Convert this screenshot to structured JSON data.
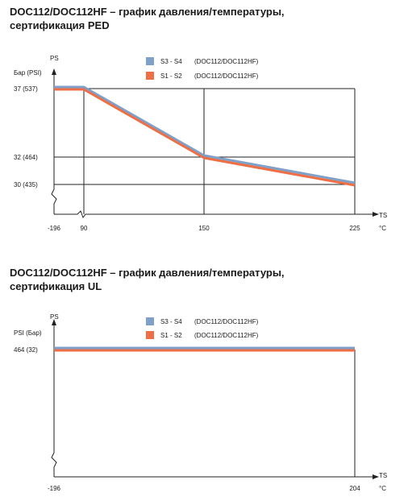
{
  "chart_data": [
    {
      "type": "line",
      "title_line1": "DOC112/DOC112HF – график давления/температуры,",
      "title_line2": "сертификация PED",
      "y_axis_name": "PS",
      "y_unit": "Бар (PSI)",
      "x_axis_name": "TS",
      "x_unit": "°C",
      "x_ticks": [
        {
          "value": -196,
          "label": "-196"
        },
        {
          "value": 90,
          "label": "90"
        },
        {
          "value": 150,
          "label": "150"
        },
        {
          "value": 225,
          "label": "225"
        }
      ],
      "y_ticks": [
        {
          "value": 37,
          "label": "37  (537)"
        },
        {
          "value": 32,
          "label": "32  (464)"
        },
        {
          "value": 30,
          "label": "30  (435)"
        }
      ],
      "grid": true,
      "legend_position": "top-center",
      "series": [
        {
          "name": "S3 - S4",
          "models": "(DOC112/DOC112HF)",
          "color": "#7fa0c8",
          "points": [
            [
              -196,
              37
            ],
            [
              90,
              37
            ],
            [
              150,
              32
            ],
            [
              225,
              30
            ]
          ]
        },
        {
          "name": "S1 - S2",
          "models": "(DOC112/DOC112HF)",
          "color": "#ee6e45",
          "points": [
            [
              -196,
              37
            ],
            [
              90,
              37
            ],
            [
              150,
              32
            ],
            [
              225,
              30
            ]
          ]
        }
      ]
    },
    {
      "type": "line",
      "title_line1": "DOC112/DOC112HF – график давления/температуры,",
      "title_line2": "сертификация UL",
      "y_axis_name": "PS",
      "y_unit": "PSI (Бар)",
      "x_axis_name": "TS",
      "x_unit": "°C",
      "x_ticks": [
        {
          "value": -196,
          "label": "-196"
        },
        {
          "value": 204,
          "label": "204"
        }
      ],
      "y_ticks": [
        {
          "value": 464,
          "label": "464  (32)"
        }
      ],
      "grid": false,
      "legend_position": "top-center",
      "series": [
        {
          "name": "S3 - S4",
          "models": "(DOC112/DOC112HF)",
          "color": "#7fa0c8",
          "points": [
            [
              -196,
              464
            ],
            [
              204,
              464
            ]
          ]
        },
        {
          "name": "S1 - S2",
          "models": "(DOC112/DOC112HF)",
          "color": "#ee6e45",
          "points": [
            [
              -196,
              464
            ],
            [
              204,
              464
            ]
          ]
        }
      ]
    }
  ]
}
